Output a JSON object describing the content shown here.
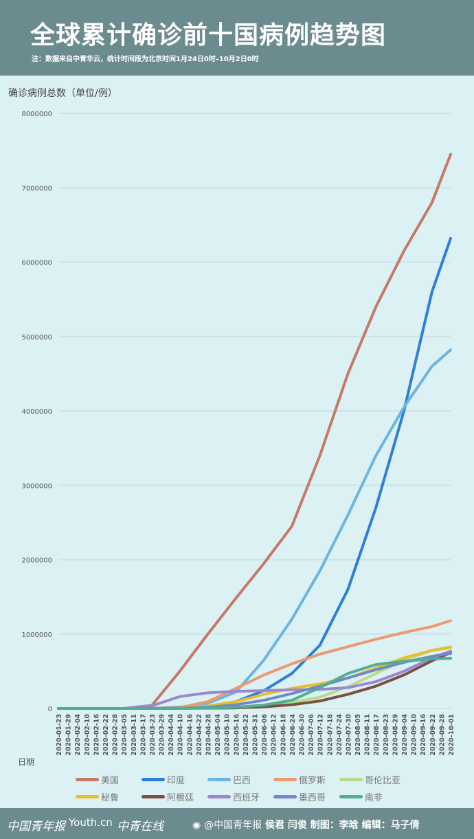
{
  "header": {
    "title": "全球累计确诊前十国病例趋势图",
    "note": "注：数据来自中青华云，统计时间段为北京时间1月24日0时–10月2日0时"
  },
  "footer": {
    "logo1": "中国青年报",
    "logo2": "Youth.cn",
    "logo3": "中青在线",
    "weibo": "@中国青年报",
    "credit": "侯君 闫俊 制图：李晗 编辑：马子倩"
  },
  "colors": {
    "header_bg": "#6b8b8f",
    "background": "#dcf1f4"
  },
  "chart_data": {
    "type": "line",
    "ylabel": "确诊病例总数（单位/例）",
    "xlabel": "日期",
    "ylim": [
      0,
      8000000
    ],
    "yticks": [
      "0",
      "1000000",
      "2000000",
      "3000000",
      "4000000",
      "5000000",
      "6000000",
      "7000000",
      "8000000"
    ],
    "grid": true,
    "legend_placement": "bottom",
    "xticks": [
      "2020-01-23",
      "2020-01-29",
      "2020-02-04",
      "2020-02-10",
      "2020-02-16",
      "2020-02-22",
      "2020-02-28",
      "2020-03-05",
      "2020-03-11",
      "2020-03-17",
      "2020-03-23",
      "2020-03-29",
      "2020-04-04",
      "2020-04-10",
      "2020-04-16",
      "2020-04-22",
      "2020-04-28",
      "2020-05-04",
      "2020-05-10",
      "2020-05-16",
      "2020-05-22",
      "2020-05-31",
      "2020-06-06",
      "2020-06-12",
      "2020-06-18",
      "2020-06-24",
      "2020-06-30",
      "2020-07-06",
      "2020-07-12",
      "2020-07-18",
      "2020-07-24",
      "2020-07-30",
      "2020-08-05",
      "2020-08-11",
      "2020-08-17",
      "2020-08-23",
      "2020-08-29",
      "2020-09-04",
      "2020-09-10",
      "2020-09-16",
      "2020-09-22",
      "2020-09-28",
      "2020-10-01"
    ],
    "x": [
      "2020-01-23",
      "2020-03-05",
      "2020-03-23",
      "2020-04-10",
      "2020-04-28",
      "2020-05-16",
      "2020-06-06",
      "2020-06-24",
      "2020-07-12",
      "2020-07-30",
      "2020-08-17",
      "2020-09-04",
      "2020-09-22",
      "2020-10-01"
    ],
    "series": [
      {
        "name": "美国",
        "color": "#c47a68",
        "values": [
          0,
          200,
          40000,
          500000,
          1000000,
          1480000,
          1950000,
          2450000,
          3400000,
          4500000,
          5400000,
          6150000,
          6800000,
          7450000
        ]
      },
      {
        "name": "印度",
        "color": "#2e7fd6",
        "values": [
          0,
          0,
          400,
          7000,
          30000,
          90000,
          240000,
          470000,
          850000,
          1600000,
          2700000,
          4000000,
          5600000,
          6320000
        ]
      },
      {
        "name": "巴西",
        "color": "#6bb5e0",
        "values": [
          0,
          0,
          1500,
          18000,
          70000,
          220000,
          650000,
          1200000,
          1850000,
          2600000,
          3400000,
          4050000,
          4600000,
          4820000
        ]
      },
      {
        "name": "俄罗斯",
        "color": "#eb9a6e",
        "values": [
          0,
          0,
          400,
          12000,
          90000,
          270000,
          450000,
          600000,
          730000,
          830000,
          930000,
          1020000,
          1100000,
          1180000
        ]
      },
      {
        "name": "哥伦比亚",
        "color": "#b6dc8a",
        "values": [
          0,
          0,
          200,
          2500,
          6000,
          15000,
          40000,
          80000,
          150000,
          290000,
          470000,
          650000,
          780000,
          830000
        ]
      },
      {
        "name": "秘鲁",
        "color": "#e9bd2c",
        "values": [
          0,
          0,
          300,
          6000,
          30000,
          90000,
          190000,
          270000,
          330000,
          410000,
          540000,
          680000,
          780000,
          820000
        ]
      },
      {
        "name": "阿根廷",
        "color": "#7a5040",
        "values": [
          0,
          0,
          200,
          2000,
          4000,
          7500,
          22000,
          50000,
          100000,
          190000,
          300000,
          450000,
          640000,
          750000
        ]
      },
      {
        "name": "西班牙",
        "color": "#9b86d3",
        "values": [
          0,
          300,
          35000,
          160000,
          210000,
          230000,
          240000,
          250000,
          255000,
          280000,
          360000,
          500000,
          680000,
          770000
        ]
      },
      {
        "name": "墨西哥",
        "color": "#7388c8",
        "values": [
          0,
          0,
          300,
          3500,
          15000,
          50000,
          110000,
          200000,
          300000,
          410000,
          520000,
          620000,
          700000,
          740000
        ]
      },
      {
        "name": "南非",
        "color": "#4fae93",
        "values": [
          0,
          0,
          400,
          2000,
          5000,
          15000,
          45000,
          110000,
          280000,
          470000,
          590000,
          635000,
          665000,
          675000
        ]
      }
    ]
  }
}
